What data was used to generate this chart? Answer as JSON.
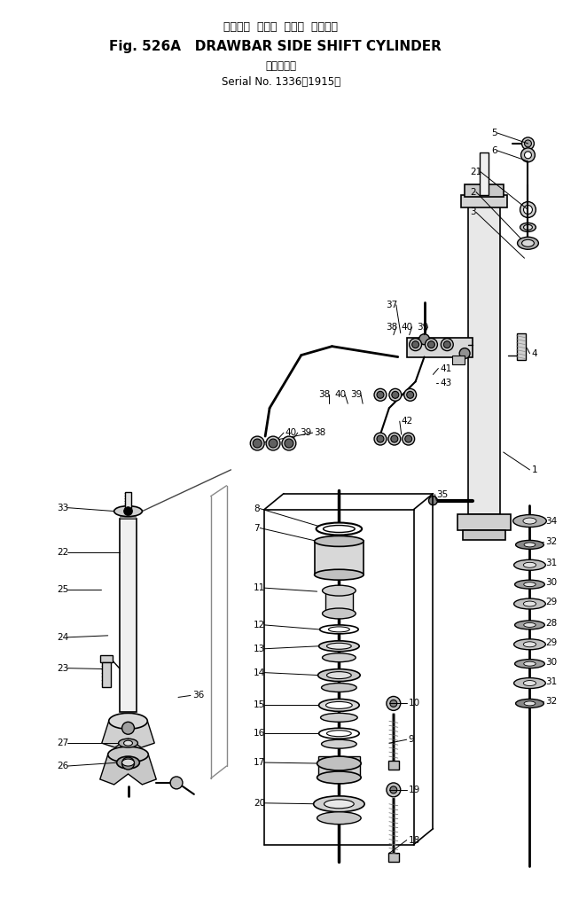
{
  "title_jp": "ドローバ  サイド  シフト  シリンダ",
  "title_en": "Fig. 526A   DRAWBAR SIDE SHIFT CYLINDER",
  "subtitle_jp": "（適用号機",
  "subtitle_en": "Serial No. 1336～1915）",
  "bg_color": "#ffffff",
  "fig_width": 6.35,
  "fig_height": 10.14,
  "dpi": 100
}
